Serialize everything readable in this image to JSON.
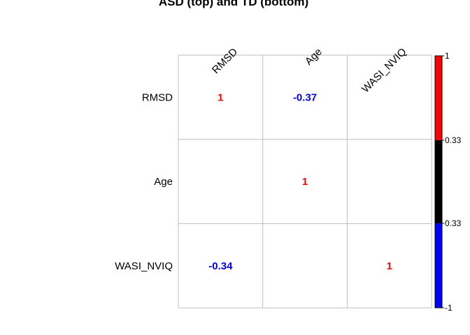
{
  "chart_data": {
    "type": "heatmap",
    "title": "ASD (top) and TD (bottom)",
    "variables": [
      "RMSD",
      "Age",
      "WASI_NVIQ"
    ],
    "cells": [
      {
        "row": 0,
        "col": 0,
        "value": 1,
        "label": "1",
        "color": "#ff0000"
      },
      {
        "row": 0,
        "col": 1,
        "value": -0.37,
        "label": "-0.37",
        "color": "#0000ff"
      },
      {
        "row": 1,
        "col": 1,
        "value": 1,
        "label": "1",
        "color": "#ff0000"
      },
      {
        "row": 2,
        "col": 0,
        "value": -0.34,
        "label": "-0.34",
        "color": "#0000ff"
      },
      {
        "row": 2,
        "col": 2,
        "value": 1,
        "label": "1",
        "color": "#ff0000"
      }
    ],
    "colorbar": {
      "range": [
        -1,
        1
      ],
      "ticks": [
        "1",
        "0.33",
        "0.33",
        "-1"
      ],
      "segments": [
        {
          "from": 0.33,
          "to": 1,
          "color": "#ff0000"
        },
        {
          "from": -0.33,
          "to": 0.33,
          "color": "#000000"
        },
        {
          "from": -1,
          "to": -0.33,
          "color": "#0000ff"
        }
      ]
    },
    "grid": true
  }
}
